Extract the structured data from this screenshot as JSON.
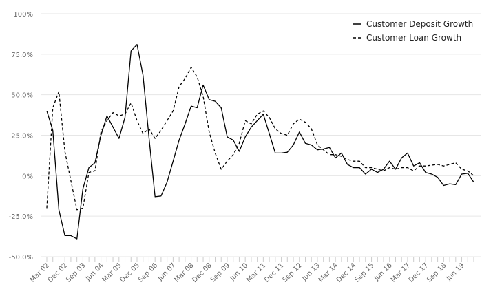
{
  "chart_data": {
    "type": "line",
    "title": "",
    "xlabel": "",
    "ylabel": "",
    "ylim": [
      -50,
      100
    ],
    "y_ticks": [
      100,
      75,
      50,
      25,
      0,
      -25,
      -50
    ],
    "y_tick_labels": [
      "100%",
      "75.0%",
      "50.0%",
      "25.0%",
      "0%",
      "-25.0%",
      "-50.0%"
    ],
    "grid": true,
    "legend_position": "top-right",
    "x_start": "Mar 02",
    "period": "quarterly",
    "x_tick_labels": [
      "Mar 02",
      "Dec 02",
      "Sep 03",
      "Jun 04",
      "Mar 05",
      "Dec 05",
      "Sep 06",
      "Jun 07",
      "Mar 08",
      "Dec 08",
      "Sep 09",
      "Jun 10",
      "Mar 11",
      "Dec 11",
      "Sep 12",
      "Jun 13",
      "Mar 14",
      "Dec 14",
      "Sep 15",
      "Jun 16",
      "Mar 17",
      "Dec 17",
      "Sep 18",
      "Jun 19"
    ],
    "series": [
      {
        "name": "Customer Deposit Growth",
        "style": "solid",
        "color": "#000000",
        "values": [
          40,
          28,
          -21,
          -37,
          -37,
          -39,
          -8,
          5,
          8,
          25,
          37,
          30,
          23,
          36,
          77,
          81,
          62,
          23,
          -13,
          -12.5,
          -4,
          9,
          22,
          32,
          43,
          42,
          56,
          47,
          46,
          42,
          24,
          22,
          15,
          24,
          30,
          34,
          38,
          26,
          14,
          14,
          14.5,
          19,
          27,
          20,
          19,
          16,
          16.5,
          17.5,
          11,
          14,
          7,
          5,
          5,
          1,
          4,
          2,
          4,
          9,
          4,
          11,
          14,
          6,
          8,
          2,
          1,
          -1,
          -6,
          -5,
          -5.5,
          1,
          1.5,
          -4
        ]
      },
      {
        "name": "Customer Loan Growth",
        "style": "dashed",
        "color": "#000000",
        "values": [
          -20,
          42,
          52,
          15,
          -3,
          -21,
          -20,
          2,
          3,
          27,
          34,
          39,
          37,
          38,
          45,
          34,
          26,
          29,
          23,
          28,
          34,
          40,
          55,
          60,
          67,
          61,
          49,
          27,
          14,
          4,
          9,
          13,
          20,
          34,
          32,
          38,
          40,
          36,
          29,
          26,
          25,
          32,
          35,
          33,
          29,
          19,
          16,
          13,
          13,
          12,
          10,
          9,
          9,
          5,
          5,
          4,
          3,
          5,
          4,
          5,
          5,
          3,
          6,
          6,
          6.5,
          7,
          6,
          7,
          8,
          4,
          3,
          0
        ]
      }
    ]
  }
}
